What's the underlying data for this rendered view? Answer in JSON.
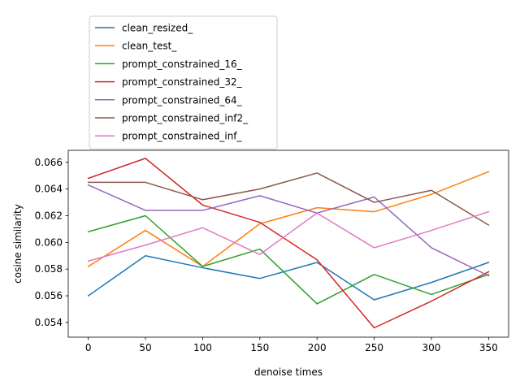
{
  "chart_data": {
    "type": "line",
    "xlabel": "denoise times",
    "ylabel": "cosine similarity",
    "x": [
      0,
      50,
      100,
      150,
      200,
      250,
      300,
      350
    ],
    "xlim": [
      -17.5,
      367.5
    ],
    "ylim": [
      0.0529,
      0.0669
    ],
    "xticks": [
      "0",
      "50",
      "100",
      "150",
      "200",
      "250",
      "300",
      "350"
    ],
    "yticks": [
      "0.054",
      "0.056",
      "0.058",
      "0.060",
      "0.062",
      "0.064",
      "0.066"
    ],
    "grid": false,
    "legend_position": "top-left, above plot",
    "series": [
      {
        "name": "clean_resized_",
        "color": "#1f77b4",
        "values": [
          0.056,
          0.059,
          0.0581,
          0.0573,
          0.0585,
          0.0557,
          0.057,
          0.0585
        ]
      },
      {
        "name": "clean_test_",
        "color": "#ff7f0e",
        "values": [
          0.0582,
          0.0609,
          0.0582,
          0.0614,
          0.0626,
          0.0623,
          0.0636,
          0.0653
        ]
      },
      {
        "name": "prompt_constrained_16_",
        "color": "#2ca02c",
        "values": [
          0.0608,
          0.062,
          0.0582,
          0.0595,
          0.0554,
          0.0576,
          0.0561,
          0.0576
        ]
      },
      {
        "name": "prompt_constrained_32_",
        "color": "#d62728",
        "values": [
          0.0648,
          0.0663,
          0.0628,
          0.0615,
          0.0587,
          0.0536,
          0.0556,
          0.0578
        ]
      },
      {
        "name": "prompt_constrained_64_",
        "color": "#9467bd",
        "values": [
          0.0643,
          0.0624,
          0.0624,
          0.0635,
          0.0622,
          0.0634,
          0.0596,
          0.0575
        ]
      },
      {
        "name": "prompt_constrained_inf2_",
        "color": "#8c564b",
        "values": [
          0.0645,
          0.0645,
          0.0632,
          0.064,
          0.0652,
          0.063,
          0.0639,
          0.0613
        ]
      },
      {
        "name": "prompt_constrained_inf_",
        "color": "#e377c2",
        "values": [
          0.0586,
          0.0598,
          0.0611,
          0.0591,
          0.0622,
          0.0596,
          0.0609,
          0.0623
        ]
      }
    ]
  }
}
